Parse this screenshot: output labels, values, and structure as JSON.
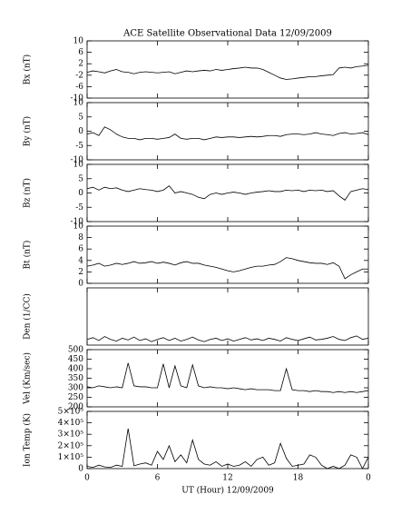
{
  "chart_data": [
    {
      "type": "line",
      "title": "ACE Satellite Observational Data   12/09/2009",
      "ylabel": "Bx (nT)",
      "ylim": [
        -10,
        10
      ],
      "yticks": [
        -10,
        -6,
        -2,
        2,
        6,
        10
      ],
      "xlim": [
        0,
        24
      ],
      "xticks": [
        0,
        6,
        12,
        18,
        {
          "value": 24,
          "label": "0"
        }
      ],
      "x": [
        0,
        0.5,
        1,
        1.5,
        2,
        2.5,
        3,
        3.5,
        4,
        4.5,
        5,
        5.5,
        6,
        6.5,
        7,
        7.5,
        8,
        8.5,
        9,
        9.5,
        10,
        10.5,
        11,
        11.5,
        12,
        12.5,
        13,
        13.5,
        14,
        14.5,
        15,
        15.5,
        16,
        16.5,
        17,
        17.5,
        18,
        18.5,
        19,
        19.5,
        20,
        20.5,
        21,
        21.5,
        22,
        22.5,
        23,
        23.5,
        24
      ],
      "series": [
        {
          "color": "#000000",
          "values": [
            -1,
            -0.5,
            -0.8,
            -1.2,
            -0.5,
            0,
            -0.8,
            -1,
            -1.5,
            -1,
            -0.8,
            -1,
            -1.2,
            -1,
            -0.8,
            -1.5,
            -1,
            -0.5,
            -0.8,
            -0.5,
            -0.3,
            -0.5,
            0,
            -0.3,
            0,
            0.3,
            0.5,
            0.8,
            0.5,
            0.5,
            0,
            -1,
            -2,
            -3,
            -3.5,
            -3.3,
            -3,
            -2.8,
            -2.5,
            -2.5,
            -2.2,
            -2,
            -1.8,
            0.5,
            0.8,
            0.5,
            1,
            1.2,
            1.5
          ]
        }
      ]
    },
    {
      "type": "line",
      "ylabel": "By (nT)",
      "ylim": [
        -10,
        10
      ],
      "yticks": [
        -10,
        -5,
        0,
        5,
        10
      ],
      "xlim": [
        0,
        24
      ],
      "xticks": [
        0,
        6,
        12,
        18,
        {
          "value": 24,
          "label": "0"
        }
      ],
      "x": [
        0,
        0.5,
        1,
        1.5,
        2,
        2.5,
        3,
        3.5,
        4,
        4.5,
        5,
        5.5,
        6,
        6.5,
        7,
        7.5,
        8,
        8.5,
        9,
        9.5,
        10,
        10.5,
        11,
        11.5,
        12,
        12.5,
        13,
        13.5,
        14,
        14.5,
        15,
        15.5,
        16,
        16.5,
        17,
        17.5,
        18,
        18.5,
        19,
        19.5,
        20,
        20.5,
        21,
        21.5,
        22,
        22.5,
        23,
        23.5,
        24
      ],
      "series": [
        {
          "color": "#000000",
          "values": [
            -1,
            -0.5,
            -1.5,
            1.5,
            0.5,
            -1,
            -2,
            -2.5,
            -2.5,
            -3,
            -2.5,
            -2.5,
            -2.8,
            -2.5,
            -2.2,
            -1,
            -2.5,
            -2.8,
            -2.5,
            -2.5,
            -3,
            -2.5,
            -2,
            -2.2,
            -2,
            -2,
            -2.2,
            -2,
            -1.8,
            -2,
            -1.8,
            -1.5,
            -1.5,
            -1.8,
            -1.2,
            -1,
            -1,
            -1.2,
            -1,
            -0.5,
            -1,
            -1.2,
            -1.5,
            -0.8,
            -0.5,
            -1,
            -0.8,
            -0.5,
            -1.2
          ]
        }
      ]
    },
    {
      "type": "line",
      "ylabel": "Bz (nT)",
      "ylim": [
        -10,
        10
      ],
      "yticks": [
        -10,
        -5,
        0,
        5,
        10
      ],
      "xlim": [
        0,
        24
      ],
      "xticks": [
        0,
        6,
        12,
        18,
        {
          "value": 24,
          "label": "0"
        }
      ],
      "x": [
        0,
        0.5,
        1,
        1.5,
        2,
        2.5,
        3,
        3.5,
        4,
        4.5,
        5,
        5.5,
        6,
        6.5,
        7,
        7.5,
        8,
        8.5,
        9,
        9.5,
        10,
        10.5,
        11,
        11.5,
        12,
        12.5,
        13,
        13.5,
        14,
        14.5,
        15,
        15.5,
        16,
        16.5,
        17,
        17.5,
        18,
        18.5,
        19,
        19.5,
        20,
        20.5,
        21,
        21.5,
        22,
        22.5,
        23,
        23.5,
        24
      ],
      "series": [
        {
          "color": "#000000",
          "values": [
            1.5,
            2,
            1,
            2,
            1.5,
            1.8,
            1,
            0.5,
            1,
            1.5,
            1.2,
            1,
            0.5,
            1,
            2.5,
            0,
            0.5,
            0,
            -0.5,
            -1.5,
            -2,
            -0.5,
            0,
            -0.5,
            0,
            0.3,
            0,
            -0.5,
            0,
            0.3,
            0.5,
            0.8,
            0.5,
            0.5,
            1,
            0.8,
            1,
            0.5,
            1,
            0.8,
            1,
            0.5,
            0.8,
            -1,
            -2.5,
            0.5,
            1,
            1.5,
            1.2
          ]
        }
      ]
    },
    {
      "type": "line",
      "ylabel": "Bt (nT)",
      "ylim": [
        0,
        10
      ],
      "yticks": [
        0,
        2,
        4,
        6,
        8,
        10
      ],
      "xlim": [
        0,
        24
      ],
      "xticks": [
        0,
        6,
        12,
        18,
        {
          "value": 24,
          "label": "0"
        }
      ],
      "x": [
        0,
        0.5,
        1,
        1.5,
        2,
        2.5,
        3,
        3.5,
        4,
        4.5,
        5,
        5.5,
        6,
        6.5,
        7,
        7.5,
        8,
        8.5,
        9,
        9.5,
        10,
        10.5,
        11,
        11.5,
        12,
        12.5,
        13,
        13.5,
        14,
        14.5,
        15,
        15.5,
        16,
        16.5,
        17,
        17.5,
        18,
        18.5,
        19,
        19.5,
        20,
        20.5,
        21,
        21.5,
        22,
        22.5,
        23,
        23.5,
        24
      ],
      "series": [
        {
          "color": "#000000",
          "values": [
            3,
            3.2,
            3.5,
            3,
            3.2,
            3.5,
            3.3,
            3.5,
            3.8,
            3.5,
            3.6,
            3.8,
            3.5,
            3.7,
            3.5,
            3.2,
            3.6,
            3.8,
            3.5,
            3.5,
            3.2,
            3,
            2.8,
            2.5,
            2.2,
            2,
            2.2,
            2.5,
            2.8,
            3,
            3,
            3.2,
            3.3,
            3.8,
            4.5,
            4.3,
            4,
            3.8,
            3.6,
            3.5,
            3.5,
            3.3,
            3.6,
            3,
            0.8,
            1.5,
            2,
            2.5,
            2.5
          ]
        }
      ]
    },
    {
      "type": "line",
      "ylabel": "Den (1/CC)",
      "ylim": [
        0,
        10
      ],
      "xlim": [
        0,
        24
      ],
      "xticks": [
        0,
        6,
        12,
        18,
        {
          "value": 24,
          "label": "0"
        }
      ],
      "x": [
        0,
        0.5,
        1,
        1.5,
        2,
        2.5,
        3,
        3.5,
        4,
        4.5,
        5,
        5.5,
        6,
        6.5,
        7,
        7.5,
        8,
        8.5,
        9,
        9.5,
        10,
        10.5,
        11,
        11.5,
        12,
        12.5,
        13,
        13.5,
        14,
        14.5,
        15,
        15.5,
        16,
        16.5,
        17,
        17.5,
        18,
        18.5,
        19,
        19.5,
        20,
        20.5,
        21,
        21.5,
        22,
        22.5,
        23,
        23.5,
        24
      ],
      "series": [
        {
          "color": "#000000",
          "values": [
            1,
            1.3,
            0.8,
            1.5,
            1,
            0.7,
            1.2,
            0.9,
            1.4,
            0.8,
            1.1,
            0.6,
            1,
            1.3,
            0.8,
            1.2,
            0.7,
            1,
            1.4,
            0.9,
            0.6,
            1,
            1.2,
            0.8,
            1.1,
            0.7,
            1,
            1.3,
            0.9,
            1.1,
            0.8,
            1.2,
            1,
            0.7,
            1.3,
            1,
            0.8,
            1.1,
            1.4,
            0.9,
            1,
            1.2,
            1.5,
            1,
            0.8,
            1.3,
            1.6,
            1,
            1.2
          ]
        }
      ]
    },
    {
      "type": "line",
      "ylabel": "Vel (Km/sec)",
      "ylim": [
        200,
        500
      ],
      "yticks": [
        200,
        250,
        300,
        350,
        400,
        450,
        500
      ],
      "xlim": [
        0,
        24
      ],
      "xticks": [
        0,
        6,
        12,
        18,
        {
          "value": 24,
          "label": "0"
        }
      ],
      "x": [
        0,
        0.5,
        1,
        1.5,
        2,
        2.5,
        3,
        3.5,
        4,
        4.5,
        5,
        5.5,
        6,
        6.5,
        7,
        7.5,
        8,
        8.5,
        9,
        9.5,
        10,
        10.5,
        11,
        11.5,
        12,
        12.5,
        13,
        13.5,
        14,
        14.5,
        15,
        15.5,
        16,
        16.5,
        17,
        17.5,
        18,
        18.5,
        19,
        19.5,
        20,
        20.5,
        21,
        21.5,
        22,
        22.5,
        23,
        23.5,
        24
      ],
      "series": [
        {
          "color": "#000000",
          "values": [
            305,
            300,
            310,
            305,
            300,
            305,
            300,
            430,
            310,
            305,
            305,
            300,
            300,
            425,
            300,
            415,
            310,
            300,
            420,
            310,
            300,
            305,
            300,
            300,
            295,
            300,
            295,
            290,
            295,
            290,
            290,
            290,
            285,
            285,
            400,
            290,
            285,
            285,
            280,
            285,
            280,
            280,
            275,
            280,
            275,
            280,
            275,
            280,
            285
          ]
        }
      ]
    },
    {
      "type": "line",
      "ylabel": "Ion Temp (K)",
      "xlabel": "UT (Hour)  12/09/2009",
      "ylim": [
        0,
        500000
      ],
      "yticks": [
        0,
        {
          "value": 100000,
          "label": "1×10⁵"
        },
        {
          "value": 200000,
          "label": "2×10⁵"
        },
        {
          "value": 300000,
          "label": "3×10⁵"
        },
        {
          "value": 400000,
          "label": "4×10⁵"
        },
        {
          "value": 500000,
          "label": "5×10⁵"
        }
      ],
      "xlim": [
        0,
        24
      ],
      "xticks": [
        0,
        6,
        12,
        18,
        {
          "value": 24,
          "label": "0"
        }
      ],
      "x": [
        0,
        0.5,
        1,
        1.5,
        2,
        2.5,
        3,
        3.5,
        4,
        4.5,
        5,
        5.5,
        6,
        6.5,
        7,
        7.5,
        8,
        8.5,
        9,
        9.5,
        10,
        10.5,
        11,
        11.5,
        12,
        12.5,
        13,
        13.5,
        14,
        14.5,
        15,
        15.5,
        16,
        16.5,
        17,
        17.5,
        18,
        18.5,
        19,
        19.5,
        20,
        20.5,
        21,
        21.5,
        22,
        22.5,
        23,
        23.5,
        24
      ],
      "series": [
        {
          "color": "#000000",
          "values": [
            20000,
            10000,
            30000,
            15000,
            10000,
            30000,
            20000,
            350000,
            25000,
            40000,
            50000,
            30000,
            150000,
            80000,
            200000,
            60000,
            120000,
            50000,
            250000,
            80000,
            40000,
            30000,
            60000,
            20000,
            40000,
            20000,
            30000,
            60000,
            20000,
            80000,
            100000,
            30000,
            50000,
            220000,
            90000,
            20000,
            30000,
            40000,
            120000,
            100000,
            30000,
            0,
            20000,
            0,
            30000,
            120000,
            100000,
            0,
            100000
          ]
        }
      ]
    }
  ]
}
